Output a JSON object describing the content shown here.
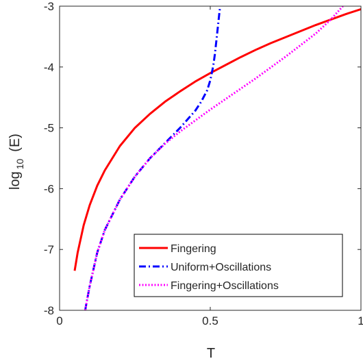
{
  "chart_data": {
    "type": "line",
    "xlabel": "T",
    "ylabel_main": "log",
    "ylabel_sub": "10",
    "ylabel_arg": "(E)",
    "xlim": [
      0,
      1
    ],
    "ylim": [
      -8,
      -3
    ],
    "xticks": [
      0,
      0.5,
      1
    ],
    "xtick_labels": [
      "0",
      "0.5",
      "1"
    ],
    "yticks": [
      -8,
      -7,
      -6,
      -5,
      -4,
      -3
    ],
    "ytick_labels": [
      "-8",
      "-7",
      "-6",
      "-5",
      "-4",
      "-3"
    ],
    "grid": false,
    "legend_position": "bottom-right",
    "series": [
      {
        "name": "Fingering",
        "color": "#ff0000",
        "style": "solid",
        "x": [
          0.05,
          0.06,
          0.08,
          0.1,
          0.125,
          0.15,
          0.2,
          0.25,
          0.3,
          0.35,
          0.4,
          0.45,
          0.5,
          0.55,
          0.6,
          0.65,
          0.7,
          0.75,
          0.8,
          0.85,
          0.9,
          0.95,
          1.0
        ],
        "y": [
          -7.35,
          -7.05,
          -6.6,
          -6.27,
          -5.95,
          -5.7,
          -5.3,
          -5.0,
          -4.77,
          -4.57,
          -4.4,
          -4.24,
          -4.1,
          -3.97,
          -3.84,
          -3.72,
          -3.61,
          -3.51,
          -3.41,
          -3.31,
          -3.22,
          -3.13,
          -3.05
        ]
      },
      {
        "name": "Uniform+Oscillations",
        "color": "#0000ff",
        "style": "dashdot",
        "x": [
          0.085,
          0.09,
          0.1,
          0.125,
          0.15,
          0.2,
          0.25,
          0.3,
          0.35,
          0.4,
          0.45,
          0.47,
          0.49,
          0.5,
          0.51,
          0.515,
          0.52,
          0.525,
          0.53,
          0.533
        ],
        "y": [
          -8.0,
          -7.86,
          -7.6,
          -7.05,
          -6.68,
          -6.18,
          -5.8,
          -5.5,
          -5.25,
          -5.0,
          -4.72,
          -4.57,
          -4.38,
          -4.22,
          -3.98,
          -3.8,
          -3.58,
          -3.35,
          -3.12,
          -3.0
        ]
      },
      {
        "name": "Fingering+Oscillations",
        "color": "#ff00ff",
        "style": "dotted",
        "x": [
          0.085,
          0.09,
          0.1,
          0.125,
          0.15,
          0.2,
          0.25,
          0.3,
          0.35,
          0.4,
          0.45,
          0.5,
          0.55,
          0.6,
          0.65,
          0.7,
          0.75,
          0.8,
          0.85,
          0.9,
          0.94
        ],
        "y": [
          -8.0,
          -7.86,
          -7.6,
          -7.05,
          -6.68,
          -6.18,
          -5.8,
          -5.5,
          -5.26,
          -5.06,
          -4.88,
          -4.7,
          -4.53,
          -4.36,
          -4.19,
          -4.01,
          -3.83,
          -3.64,
          -3.45,
          -3.22,
          -3.0
        ]
      }
    ]
  }
}
